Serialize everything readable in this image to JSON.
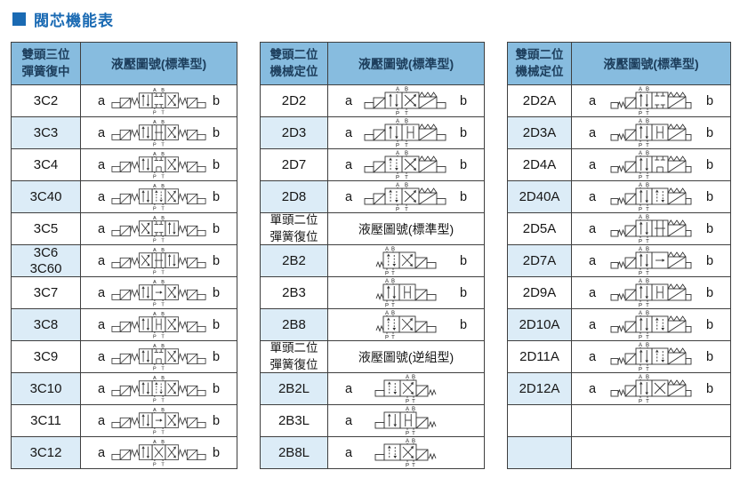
{
  "page": {
    "title": "閥芯機能表"
  },
  "colors": {
    "title_accent": "#1a6ab3",
    "header_bg": "#87bcdf",
    "stripe_bg": "#dcecf7",
    "border": "#3f3f3f",
    "header_text": "#1d3e5c",
    "diagram_stroke": "#333333"
  },
  "tables": [
    {
      "name": "double-solenoid-3-position",
      "header": {
        "lines": [
          "雙頭三位",
          "彈簧復中"
        ],
        "title": "液壓圖號(標準型)"
      },
      "rows": [
        {
          "code": [
            "3C2"
          ],
          "a": "a",
          "b": "b",
          "diagram": {
            "kind": "d3",
            "boxes": [
              "P",
              "C",
              "X"
            ]
          }
        },
        {
          "code": [
            "3C3"
          ],
          "a": "a",
          "b": "b",
          "diagram": {
            "kind": "d3",
            "boxes": [
              "P",
              "O",
              "X"
            ]
          }
        },
        {
          "code": [
            "3C4"
          ],
          "a": "a",
          "b": "b",
          "diagram": {
            "kind": "d3",
            "boxes": [
              "P",
              "T",
              "X"
            ]
          }
        },
        {
          "code": [
            "3C40"
          ],
          "a": "a",
          "b": "b",
          "diagram": {
            "kind": "d3",
            "boxes": [
              "P",
              "D",
              "X"
            ]
          }
        },
        {
          "code": [
            "3C5"
          ],
          "a": "a",
          "b": "b",
          "diagram": {
            "kind": "d3",
            "boxes": [
              "X",
              "C",
              "P"
            ]
          }
        },
        {
          "code": [
            "3C6",
            "3C60"
          ],
          "a": "a",
          "b": "b",
          "diagram": {
            "kind": "d3",
            "boxes": [
              "X",
              "O",
              "P"
            ]
          }
        },
        {
          "code": [
            "3C7"
          ],
          "a": "a",
          "b": "b",
          "diagram": {
            "kind": "d3",
            "boxes": [
              "P",
              "A",
              "X"
            ]
          }
        },
        {
          "code": [
            "3C8"
          ],
          "a": "a",
          "b": "b",
          "diagram": {
            "kind": "d3",
            "boxes": [
              "P",
              "H",
              "X"
            ]
          }
        },
        {
          "code": [
            "3C9"
          ],
          "a": "a",
          "b": "b",
          "diagram": {
            "kind": "d3",
            "boxes": [
              "P",
              "T",
              "X"
            ]
          }
        },
        {
          "code": [
            "3C10"
          ],
          "a": "a",
          "b": "b",
          "diagram": {
            "kind": "d3",
            "boxes": [
              "P",
              "D",
              "X"
            ]
          }
        },
        {
          "code": [
            "3C11"
          ],
          "a": "a",
          "b": "b",
          "diagram": {
            "kind": "d3",
            "boxes": [
              "P",
              "A",
              "X"
            ]
          }
        },
        {
          "code": [
            "3C12"
          ],
          "a": "a",
          "b": "b",
          "diagram": {
            "kind": "d3",
            "boxes": [
              "P",
              "XX",
              "X"
            ]
          }
        }
      ]
    },
    {
      "name": "double-solenoid-2-position",
      "header": {
        "lines": [
          "雙頭二位",
          "機械定位"
        ],
        "title": "液壓圖號(標準型)"
      },
      "rows": [
        {
          "code": [
            "2D2"
          ],
          "a": "a",
          "b": "b",
          "diagram": {
            "kind": "d2",
            "boxes": [
              "P",
              "X"
            ]
          }
        },
        {
          "code": [
            "2D3"
          ],
          "a": "a",
          "b": "b",
          "diagram": {
            "kind": "d2",
            "boxes": [
              "P",
              "H"
            ]
          }
        },
        {
          "code": [
            "2D7"
          ],
          "a": "a",
          "b": "b",
          "diagram": {
            "kind": "d2",
            "boxes": [
              "D",
              "X"
            ]
          }
        },
        {
          "code": [
            "2D8"
          ],
          "a": "a",
          "b": "b",
          "diagram": {
            "kind": "d2",
            "boxes": [
              "D",
              "X"
            ]
          }
        },
        {
          "sub": {
            "lines": [
              "單頭二位",
              "彈簧復位"
            ],
            "title": "液壓圖號(標準型)"
          }
        },
        {
          "code": [
            "2B2"
          ],
          "a": "",
          "b": "b",
          "diagram": {
            "kind": "b2",
            "boxes": [
              "D",
              "X"
            ]
          }
        },
        {
          "code": [
            "2B3"
          ],
          "a": "",
          "b": "b",
          "diagram": {
            "kind": "b2",
            "boxes": [
              "P",
              "H"
            ]
          }
        },
        {
          "code": [
            "2B8"
          ],
          "a": "",
          "b": "b",
          "diagram": {
            "kind": "b2",
            "boxes": [
              "D",
              "X"
            ]
          }
        },
        {
          "sub": {
            "lines": [
              "單頭二位",
              "彈簧復位"
            ],
            "title": "液壓圖號(逆組型)"
          }
        },
        {
          "code": [
            "2B2L"
          ],
          "a": "a",
          "b": "",
          "diagram": {
            "kind": "b2l",
            "boxes": [
              "D",
              "X"
            ]
          }
        },
        {
          "code": [
            "2B3L"
          ],
          "a": "a",
          "b": "",
          "diagram": {
            "kind": "b2l",
            "boxes": [
              "P",
              "H"
            ]
          }
        },
        {
          "code": [
            "2B8L"
          ],
          "a": "a",
          "b": "",
          "diagram": {
            "kind": "b2l",
            "boxes": [
              "D",
              "X"
            ]
          }
        }
      ]
    },
    {
      "name": "double-solenoid-2-position-A",
      "header": {
        "lines": [
          "雙頭二位",
          "機械定位"
        ],
        "title": "液壓圖號(標準型)"
      },
      "rows": [
        {
          "code": [
            "2D2A"
          ],
          "a": "a",
          "b": "b",
          "diagram": {
            "kind": "d2a",
            "boxes": [
              "P",
              "C"
            ]
          }
        },
        {
          "code": [
            "2D3A"
          ],
          "a": "a",
          "b": "b",
          "diagram": {
            "kind": "d2a",
            "boxes": [
              "P",
              "H"
            ]
          }
        },
        {
          "code": [
            "2D4A"
          ],
          "a": "a",
          "b": "b",
          "diagram": {
            "kind": "d2a",
            "boxes": [
              "P",
              "T"
            ]
          }
        },
        {
          "code": [
            "2D40A"
          ],
          "a": "a",
          "b": "b",
          "diagram": {
            "kind": "d2a",
            "boxes": [
              "P",
              "D"
            ]
          }
        },
        {
          "code": [
            "2D5A"
          ],
          "a": "a",
          "b": "b",
          "diagram": {
            "kind": "d2a",
            "boxes": [
              "P",
              "O"
            ]
          }
        },
        {
          "code": [
            "2D7A"
          ],
          "a": "a",
          "b": "b",
          "diagram": {
            "kind": "d2a",
            "boxes": [
              "P",
              "A"
            ]
          }
        },
        {
          "code": [
            "2D9A"
          ],
          "a": "a",
          "b": "b",
          "diagram": {
            "kind": "d2a",
            "boxes": [
              "P",
              "H"
            ]
          }
        },
        {
          "code": [
            "2D10A"
          ],
          "a": "a",
          "b": "b",
          "diagram": {
            "kind": "d2a",
            "boxes": [
              "P",
              "D"
            ]
          }
        },
        {
          "code": [
            "2D11A"
          ],
          "a": "a",
          "b": "b",
          "diagram": {
            "kind": "d2a",
            "boxes": [
              "P",
              "D"
            ]
          }
        },
        {
          "code": [
            "2D12A"
          ],
          "a": "a",
          "b": "b",
          "diagram": {
            "kind": "d2a",
            "boxes": [
              "P",
              "XX"
            ]
          }
        },
        {
          "empty": true
        },
        {
          "empty": true
        }
      ]
    }
  ]
}
